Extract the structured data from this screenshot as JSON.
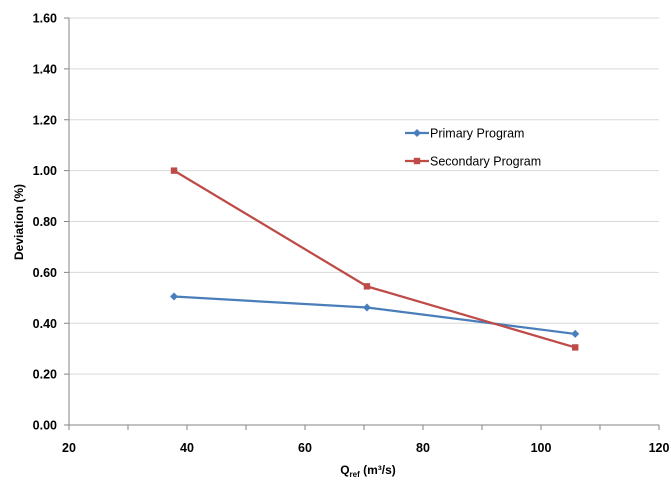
{
  "chart_data": {
    "type": "line",
    "title": "",
    "xlabel": "Q",
    "xlabel_subscript": "ref",
    "xlabel_suffix": " (m³/s)",
    "ylabel": "Deviation (%)",
    "xlim": [
      20,
      120
    ],
    "ylim": [
      0,
      1.6
    ],
    "xticks": [
      20,
      40,
      60,
      80,
      100,
      120
    ],
    "xtick_labels": [
      "20",
      "40",
      "60",
      "80",
      "100",
      "120"
    ],
    "yticks": [
      0,
      0.2,
      0.4,
      0.6,
      0.8,
      1.0,
      1.2,
      1.4,
      1.6
    ],
    "ytick_labels": [
      "0.00",
      "0.20",
      "0.40",
      "0.60",
      "0.80",
      "1.00",
      "1.20",
      "1.40",
      "1.60"
    ],
    "grid": "horizontal",
    "legend_position": "upper-right inside plot",
    "series": [
      {
        "name": "Primary Program",
        "color": "#4a7ebb",
        "marker": "diamond",
        "x": [
          37.8,
          70.5,
          105.8
        ],
        "y": [
          0.505,
          0.462,
          0.358
        ]
      },
      {
        "name": "Secondary Program",
        "color": "#be4b48",
        "marker": "square",
        "x": [
          37.8,
          70.5,
          105.8
        ],
        "y": [
          1.0,
          0.545,
          0.305
        ]
      }
    ]
  }
}
